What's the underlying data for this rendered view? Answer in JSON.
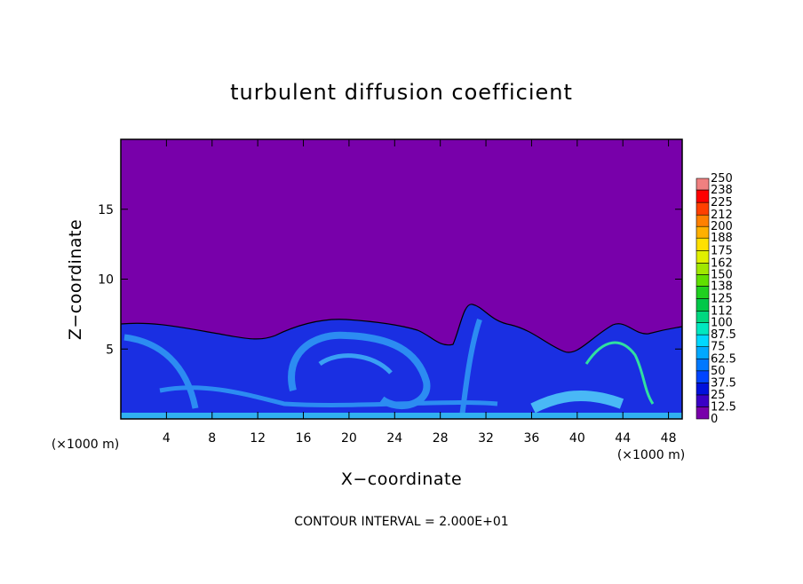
{
  "chart_data": {
    "type": "contour",
    "title": "turbulent diffusion coefficient",
    "x_label": "X−coordinate",
    "y_label": "Z−coordinate",
    "x_unit": "(×1000 m)",
    "x_unit_right": "(×1000 m)",
    "footnote": "CONTOUR INTERVAL = 2.000E+01",
    "xlim": [
      0,
      49.2
    ],
    "xticks": [
      4,
      8,
      12,
      16,
      20,
      24,
      28,
      32,
      36,
      40,
      44,
      48
    ],
    "ylim": [
      0,
      20
    ],
    "yticks": [
      5,
      10,
      15
    ],
    "colorbar": {
      "levels": [
        0,
        12.5,
        25,
        37.5,
        50,
        62.5,
        75,
        87.5,
        100,
        112,
        125,
        138,
        150,
        162,
        175,
        188,
        200,
        212,
        225,
        238,
        250
      ],
      "colors": [
        "#7800aa",
        "#3a00c6",
        "#0010dc",
        "#0044ff",
        "#0078ff",
        "#00a8ff",
        "#00d8ff",
        "#00e8c0",
        "#00d880",
        "#00c848",
        "#20d020",
        "#60e000",
        "#a0e800",
        "#e0f000",
        "#ffe000",
        "#ffb000",
        "#ff8000",
        "#ff4000",
        "#ff0000",
        "#f08080"
      ]
    }
  }
}
